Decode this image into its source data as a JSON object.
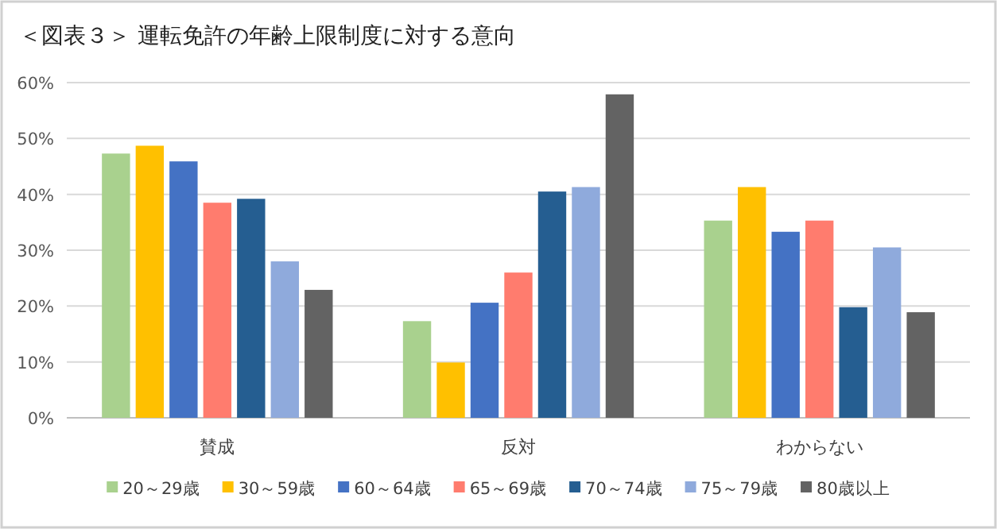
{
  "chart_data": {
    "type": "bar",
    "title": "＜図表３＞ 運転免許の年齢上限制度に対する意向",
    "categories": [
      "賛成",
      "反対",
      "わからない"
    ],
    "series": [
      {
        "name": "20～29歳",
        "color": "#a9d18e",
        "values": [
          47.3,
          17.3,
          35.3
        ]
      },
      {
        "name": "30～59歳",
        "color": "#ffc000",
        "values": [
          48.7,
          9.9,
          41.3
        ]
      },
      {
        "name": "60～64歳",
        "color": "#4472c4",
        "values": [
          45.9,
          20.6,
          33.3
        ]
      },
      {
        "name": "65～69歳",
        "color": "#ff7c6e",
        "values": [
          38.5,
          26.0,
          35.3
        ]
      },
      {
        "name": "70～74歳",
        "color": "#255e91",
        "values": [
          39.2,
          40.5,
          19.8
        ]
      },
      {
        "name": "75～79歳",
        "color": "#8faadc",
        "values": [
          28.0,
          41.3,
          30.5
        ]
      },
      {
        "name": "80歳以上",
        "color": "#636363",
        "values": [
          22.9,
          57.9,
          18.9
        ]
      }
    ],
    "ylim": [
      0,
      60
    ],
    "yticks": [
      {
        "value": 0,
        "label": "0%"
      },
      {
        "value": 10,
        "label": "10%"
      },
      {
        "value": 20,
        "label": "20%"
      },
      {
        "value": 30,
        "label": "30%"
      },
      {
        "value": 40,
        "label": "40%"
      },
      {
        "value": 50,
        "label": "50%"
      },
      {
        "value": 60,
        "label": "60%"
      }
    ],
    "grid": "y",
    "legend": "bottom"
  }
}
